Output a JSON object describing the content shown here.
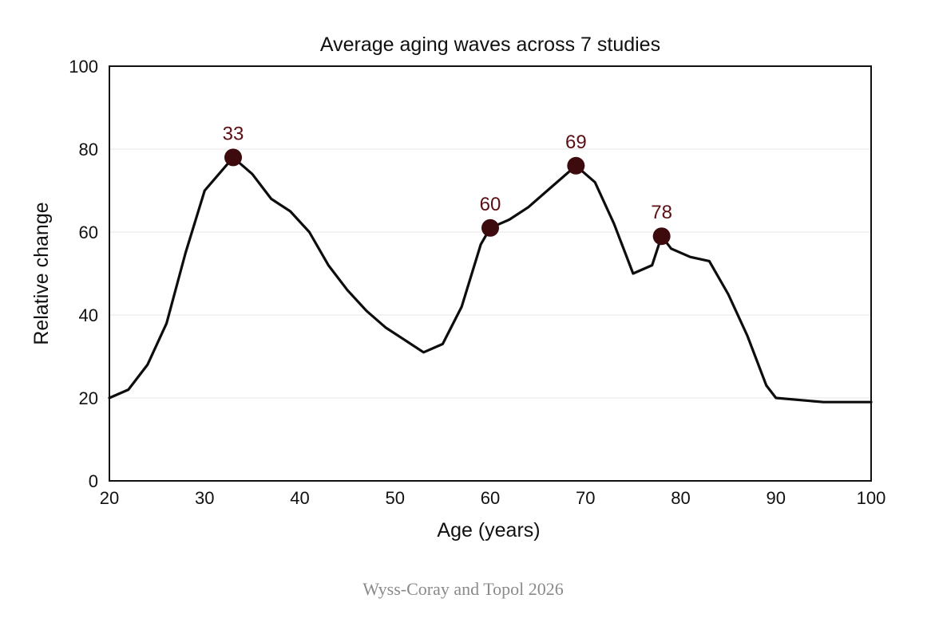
{
  "chart_data": {
    "type": "line",
    "title": "Average aging waves across 7 studies",
    "xlabel": "Age (years)",
    "ylabel": "Relative change",
    "xlim": [
      20,
      100
    ],
    "ylim": [
      0,
      100
    ],
    "xticks": [
      20,
      30,
      40,
      50,
      60,
      70,
      80,
      90,
      100
    ],
    "yticks": [
      0,
      20,
      40,
      60,
      80,
      100
    ],
    "grid": "horizontal",
    "series": [
      {
        "x": [
          20,
          22,
          24,
          26,
          28,
          30,
          33,
          35,
          37,
          39,
          41,
          43,
          45,
          47,
          49,
          51,
          53,
          55,
          57,
          59,
          60,
          62,
          64,
          66,
          69,
          71,
          73,
          75,
          77,
          78,
          79,
          81,
          83,
          85,
          87,
          89,
          90,
          95,
          100
        ],
        "y": [
          20,
          22,
          28,
          38,
          55,
          70,
          78,
          74,
          68,
          65,
          60,
          52,
          46,
          41,
          37,
          34,
          31,
          33,
          42,
          57,
          61,
          63,
          66,
          70,
          76,
          72,
          62,
          50,
          52,
          59,
          56,
          54,
          53,
          45,
          35,
          23,
          20,
          19,
          19
        ],
        "color": "#0d0d0d"
      }
    ],
    "peaks": [
      {
        "x": 33,
        "y": 78,
        "label": "33"
      },
      {
        "x": 60,
        "y": 61,
        "label": "60"
      },
      {
        "x": 69,
        "y": 76,
        "label": "69"
      },
      {
        "x": 78,
        "y": 59,
        "label": "78"
      }
    ],
    "peak_color": "#3d0a0e",
    "peak_label_color": "#5a0f14"
  },
  "source": "Wyss-Coray and Topol 2026"
}
